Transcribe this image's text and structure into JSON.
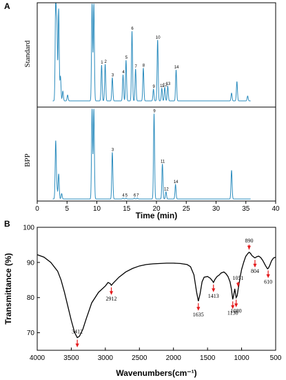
{
  "figure": {
    "panel_a_label": "A",
    "panel_b_label": "B"
  },
  "chart_data": [
    {
      "type": "line",
      "panel": "A",
      "xlabel": "Time (min)",
      "ylabel": "",
      "xlim": [
        0,
        40
      ],
      "xticks": [
        0,
        5,
        10,
        15,
        20,
        25,
        30,
        35,
        40
      ],
      "grid": false,
      "line_color": "#2b8cbe",
      "series": [
        {
          "name": "Standard",
          "peaks": [
            {
              "t": 3.1,
              "h": 1.0
            },
            {
              "t": 3.3,
              "h": 0.75
            },
            {
              "t": 3.6,
              "h": 0.95
            },
            {
              "t": 3.9,
              "h": 0.25
            },
            {
              "t": 4.3,
              "h": 0.1
            },
            {
              "t": 5.1,
              "h": 0.06
            },
            {
              "t": 9.2,
              "h": 1.0
            },
            {
              "t": 9.5,
              "h": 1.0
            },
            {
              "t": 10.8,
              "h": 0.37,
              "label": "1"
            },
            {
              "t": 11.4,
              "h": 0.38,
              "label": "2"
            },
            {
              "t": 12.6,
              "h": 0.24,
              "label": "3"
            },
            {
              "t": 14.4,
              "h": 0.27,
              "label": "4"
            },
            {
              "t": 14.9,
              "h": 0.42,
              "label": "5"
            },
            {
              "t": 15.9,
              "h": 0.72,
              "label": "6"
            },
            {
              "t": 16.5,
              "h": 0.33,
              "label": "7"
            },
            {
              "t": 17.8,
              "h": 0.34,
              "label": "8"
            },
            {
              "t": 19.5,
              "h": 0.12,
              "label": "9"
            },
            {
              "t": 20.2,
              "h": 0.63,
              "label": "10"
            },
            {
              "t": 20.9,
              "h": 0.13,
              "label": "11"
            },
            {
              "t": 21.4,
              "h": 0.14,
              "label": "12"
            },
            {
              "t": 21.9,
              "h": 0.15,
              "label": "13"
            },
            {
              "t": 23.3,
              "h": 0.32,
              "label": "14"
            },
            {
              "t": 32.6,
              "h": 0.08
            },
            {
              "t": 33.5,
              "h": 0.2
            },
            {
              "t": 35.3,
              "h": 0.05
            }
          ]
        },
        {
          "name": "BPP",
          "peaks": [
            {
              "t": 3.1,
              "h": 0.64
            },
            {
              "t": 3.3,
              "h": 0.12
            },
            {
              "t": 3.6,
              "h": 0.28
            },
            {
              "t": 4.1,
              "h": 0.06
            },
            {
              "t": 9.2,
              "h": 1.0
            },
            {
              "t": 9.5,
              "h": 1.0
            },
            {
              "t": 12.6,
              "h": 0.52,
              "label": "3"
            },
            {
              "t": 14.4,
              "h": 0.01,
              "label": "4"
            },
            {
              "t": 14.9,
              "h": 0.01,
              "label": "5"
            },
            {
              "t": 16.3,
              "h": 0.01,
              "label": "6"
            },
            {
              "t": 16.8,
              "h": 0.01,
              "label": "7"
            },
            {
              "t": 19.6,
              "h": 0.95,
              "label": "9"
            },
            {
              "t": 21.0,
              "h": 0.39,
              "label": "11"
            },
            {
              "t": 21.6,
              "h": 0.08,
              "label": "12"
            },
            {
              "t": 23.2,
              "h": 0.16,
              "label": "14"
            },
            {
              "t": 32.6,
              "h": 0.32
            }
          ]
        }
      ]
    },
    {
      "type": "line",
      "panel": "B",
      "xlabel": "Wavenumbers(cm⁻¹)",
      "ylabel": "Transmittance (%)",
      "xlim": [
        4000,
        500
      ],
      "ylim": [
        65,
        100
      ],
      "xticks": [
        4000,
        3500,
        3000,
        2500,
        2000,
        1500,
        1000,
        500
      ],
      "yticks": [
        70,
        80,
        90,
        100
      ],
      "grid": false,
      "line_color": "#000000",
      "arrow_color": "#e41a1c",
      "points": [
        [
          4000,
          92.2
        ],
        [
          3900,
          91.5
        ],
        [
          3800,
          90.0
        ],
        [
          3700,
          87.5
        ],
        [
          3650,
          85.0
        ],
        [
          3600,
          81.5
        ],
        [
          3550,
          77.5
        ],
        [
          3500,
          73.5
        ],
        [
          3450,
          70.0
        ],
        [
          3412,
          68.6
        ],
        [
          3380,
          69.0
        ],
        [
          3330,
          71.0
        ],
        [
          3280,
          74.0
        ],
        [
          3200,
          78.5
        ],
        [
          3100,
          81.5
        ],
        [
          3000,
          83.3
        ],
        [
          2960,
          84.3
        ],
        [
          2930,
          84.0
        ],
        [
          2912,
          83.5
        ],
        [
          2880,
          84.2
        ],
        [
          2850,
          84.8
        ],
        [
          2800,
          85.8
        ],
        [
          2700,
          87.3
        ],
        [
          2600,
          88.3
        ],
        [
          2500,
          89.0
        ],
        [
          2400,
          89.4
        ],
        [
          2300,
          89.6
        ],
        [
          2200,
          89.7
        ],
        [
          2100,
          89.8
        ],
        [
          2000,
          89.8
        ],
        [
          1900,
          89.7
        ],
        [
          1800,
          89.4
        ],
        [
          1750,
          88.8
        ],
        [
          1700,
          86.5
        ],
        [
          1660,
          81.5
        ],
        [
          1635,
          79.0
        ],
        [
          1610,
          81.0
        ],
        [
          1580,
          84.5
        ],
        [
          1550,
          85.8
        ],
        [
          1500,
          86.0
        ],
        [
          1460,
          85.5
        ],
        [
          1430,
          84.8
        ],
        [
          1413,
          84.3
        ],
        [
          1390,
          85.2
        ],
        [
          1360,
          86.0
        ],
        [
          1330,
          86.4
        ],
        [
          1300,
          87.0
        ],
        [
          1260,
          87.3
        ],
        [
          1230,
          86.8
        ],
        [
          1200,
          86.0
        ],
        [
          1170,
          84.5
        ],
        [
          1150,
          82.5
        ],
        [
          1130,
          79.5
        ],
        [
          1115,
          80.8
        ],
        [
          1100,
          82.5
        ],
        [
          1080,
          80.0
        ],
        [
          1065,
          80.5
        ],
        [
          1051,
          82.3
        ],
        [
          1040,
          83.5
        ],
        [
          1020,
          86.0
        ],
        [
          1000,
          88.0
        ],
        [
          970,
          90.0
        ],
        [
          940,
          91.7
        ],
        [
          910,
          92.5
        ],
        [
          890,
          92.9
        ],
        [
          870,
          92.6
        ],
        [
          850,
          92.0
        ],
        [
          820,
          91.5
        ],
        [
          804,
          91.3
        ],
        [
          780,
          91.6
        ],
        [
          750,
          91.8
        ],
        [
          720,
          91.4
        ],
        [
          690,
          90.6
        ],
        [
          660,
          89.5
        ],
        [
          640,
          88.8
        ],
        [
          620,
          88.2
        ],
        [
          610,
          88.3
        ],
        [
          590,
          89.0
        ],
        [
          560,
          90.5
        ],
        [
          530,
          91.3
        ],
        [
          500,
          91.5
        ]
      ],
      "annotations": [
        {
          "x": 3412,
          "y": 68.6,
          "label": "3412",
          "dir": "down"
        },
        {
          "x": 2912,
          "y": 83.5,
          "label": "2912",
          "dir": "down"
        },
        {
          "x": 1635,
          "y": 79.0,
          "label": "1635",
          "dir": "down"
        },
        {
          "x": 1413,
          "y": 84.3,
          "label": "1413",
          "dir": "down"
        },
        {
          "x": 1130,
          "y": 79.5,
          "label": "1130",
          "dir": "down"
        },
        {
          "x": 1080,
          "y": 80.0,
          "label": "1080",
          "dir": "down"
        },
        {
          "x": 1051,
          "y": 82.3,
          "label": "1051",
          "dir": "up"
        },
        {
          "x": 890,
          "y": 92.9,
          "label": "890",
          "dir": "up"
        },
        {
          "x": 804,
          "y": 91.3,
          "label": "804",
          "dir": "down"
        },
        {
          "x": 610,
          "y": 88.3,
          "label": "610",
          "dir": "down"
        }
      ]
    }
  ]
}
